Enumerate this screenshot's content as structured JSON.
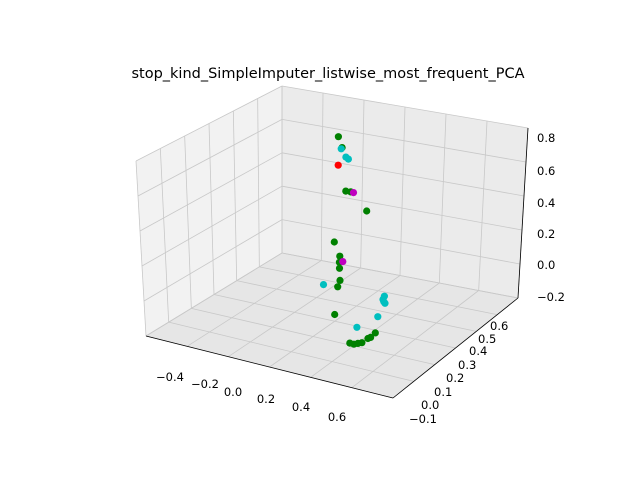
{
  "chart_data": {
    "type": "scatter",
    "title": "stop_kind_SimpleImputer_listwise_most_frequent_PCA",
    "projection": "3d",
    "grid": true,
    "xlabel": "",
    "ylabel": "",
    "zlabel": "",
    "x_ticks": [
      "−0.4",
      "−0.2",
      "0.0",
      "0.2",
      "0.4",
      "0.6"
    ],
    "y_ticks": [
      "−0.1",
      "0.0",
      "0.1",
      "0.2",
      "0.3",
      "0.4",
      "0.5",
      "0.6"
    ],
    "z_ticks": [
      "−0.2",
      "0.0",
      "0.2",
      "0.4",
      "0.6",
      "0.8"
    ],
    "xlim": [
      -0.55,
      0.72
    ],
    "ylim": [
      -0.15,
      0.62
    ],
    "zlim": [
      -0.25,
      0.85
    ],
    "colors": {
      "green": "#008000",
      "cyan": "#00bfbf",
      "red": "#ff0000",
      "magenta": "#bf00bf"
    },
    "series": [
      {
        "color": "green",
        "points": [
          [
            -0.45,
            0.55,
            -0.05
          ],
          [
            0.53,
            -0.02,
            0.52
          ],
          [
            0.03,
            0.18,
            0.66
          ],
          [
            0.0,
            0.22,
            0.56
          ],
          [
            0.18,
            0.14,
            0.42
          ],
          [
            0.26,
            0.0,
            0.28
          ],
          [
            0.2,
            0.07,
            0.13
          ],
          [
            0.24,
            0.04,
            0.13
          ],
          [
            0.27,
            0.02,
            0.12
          ],
          [
            0.23,
            0.05,
            0.02
          ],
          [
            0.3,
            -0.01,
            0.05
          ],
          [
            0.35,
            -0.06,
            -0.05
          ],
          [
            0.52,
            -0.1,
            -0.14
          ],
          [
            0.55,
            -0.1,
            -0.14
          ],
          [
            0.58,
            -0.1,
            -0.13
          ],
          [
            0.61,
            -0.1,
            -0.12
          ],
          [
            0.64,
            -0.09,
            -0.1
          ],
          [
            0.66,
            -0.09,
            -0.09
          ],
          [
            0.68,
            -0.08,
            -0.07
          ]
        ]
      },
      {
        "color": "cyan",
        "points": [
          [
            0.08,
            0.16,
            0.62
          ],
          [
            0.1,
            0.17,
            0.57
          ],
          [
            0.09,
            0.19,
            0.54
          ],
          [
            0.18,
            0.0,
            0.03
          ],
          [
            0.5,
            -0.05,
            -0.1
          ],
          [
            0.67,
            -0.06,
            0.0
          ],
          [
            0.68,
            -0.04,
            0.08
          ],
          [
            0.68,
            -0.03,
            0.05
          ],
          [
            0.69,
            -0.04,
            0.1
          ],
          [
            0.7,
            -0.05,
            0.08
          ]
        ]
      },
      {
        "color": "red",
        "points": [
          [
            0.0,
            0.2,
            0.48
          ]
        ]
      },
      {
        "color": "magenta",
        "points": [
          [
            0.2,
            0.14,
            0.42
          ],
          [
            0.28,
            0.03,
            0.15
          ]
        ]
      }
    ]
  }
}
